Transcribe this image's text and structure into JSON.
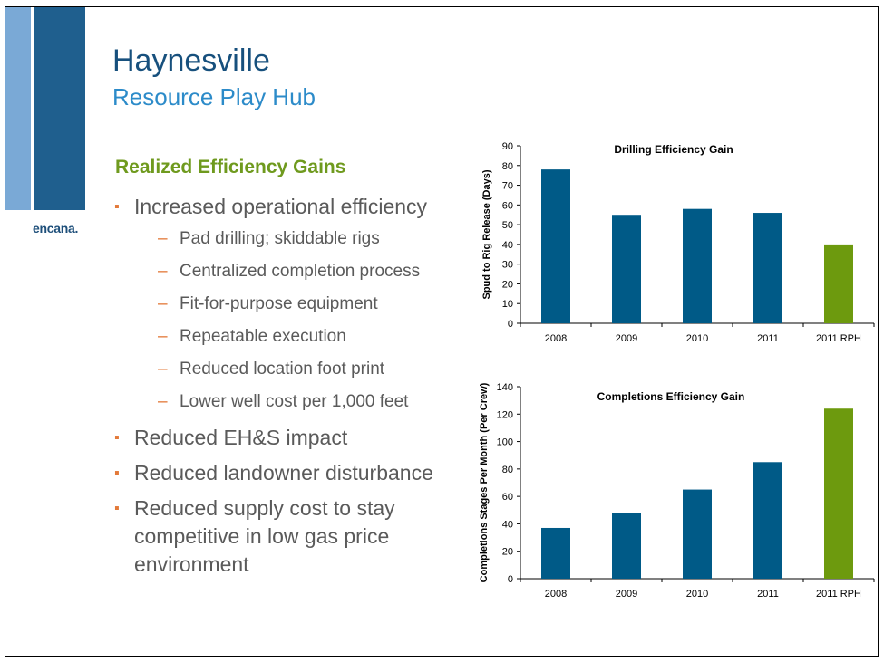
{
  "logo": "encana.",
  "title": "Haynesville",
  "subtitle": "Resource Play Hub",
  "section_heading": "Realized Efficiency Gains",
  "bullets": [
    {
      "text": "Increased operational efficiency",
      "sub": [
        "Pad drilling; skiddable rigs",
        "Centralized completion process",
        "Fit-for-purpose equipment",
        "Repeatable execution",
        "Reduced location foot print",
        "Lower well cost per 1,000 feet"
      ]
    },
    {
      "text": "Reduced EH&S impact",
      "sub": []
    },
    {
      "text": "Reduced landowner disturbance",
      "sub": []
    },
    {
      "text": "Reduced supply cost to stay competitive in low gas price environment",
      "sub": []
    }
  ],
  "colors": {
    "accent_blue": "#1f5f8e",
    "accent_green": "#6f9a1e",
    "bullet_orange": "#e3793a",
    "bar_blue": "#005a87",
    "bar_green": "#6d9a0e"
  },
  "chart_data": [
    {
      "type": "bar",
      "title": "Drilling Efficiency Gain",
      "ylabel": "Spud to Rig Release (Days)",
      "categories": [
        "2008",
        "2009",
        "2010",
        "2011",
        "2011 RPH"
      ],
      "values": [
        78,
        55,
        58,
        56,
        40
      ],
      "ylim": [
        0,
        90
      ],
      "yticks": [
        0,
        10,
        20,
        30,
        40,
        50,
        60,
        70,
        80,
        90
      ],
      "highlight_index": 4,
      "grid": false
    },
    {
      "type": "bar",
      "title": "Completions Efficiency Gain",
      "ylabel": "Completions Stages Per Month (Per Crew)",
      "categories": [
        "2008",
        "2009",
        "2010",
        "2011",
        "2011 RPH"
      ],
      "values": [
        37,
        48,
        65,
        85,
        124
      ],
      "ylim": [
        0,
        140
      ],
      "yticks": [
        0,
        20,
        40,
        60,
        80,
        100,
        120,
        140
      ],
      "highlight_index": 4,
      "grid": false
    }
  ]
}
